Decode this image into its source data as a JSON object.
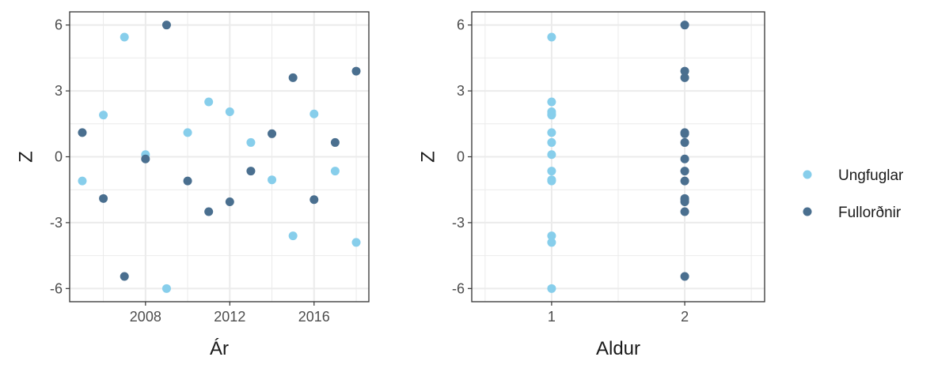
{
  "colors": {
    "ungfuglar": "#87CEEB",
    "fullordnir": "#4A6F8F",
    "grid": "#EBEBEB",
    "panel_border": "#333333"
  },
  "legend": {
    "placement": "right",
    "items": [
      {
        "label": "Ungfuglar",
        "color_key": "ungfuglar"
      },
      {
        "label": "Fullorðnir",
        "color_key": "fullordnir"
      }
    ]
  },
  "chart_data": [
    {
      "type": "scatter",
      "xlabel": "Ár",
      "ylabel": "Z",
      "xlim": [
        2004.4,
        2018.6
      ],
      "ylim": [
        -6.6,
        6.6
      ],
      "xticks": [
        2008,
        2012,
        2016
      ],
      "yticks": [
        -6,
        -3,
        0,
        3,
        6
      ],
      "grid": true,
      "series": [
        {
          "name": "Ungfuglar",
          "color_key": "ungfuglar",
          "x": [
            2005,
            2006,
            2007,
            2008,
            2009,
            2010,
            2011,
            2012,
            2013,
            2014,
            2015,
            2016,
            2017,
            2018
          ],
          "y": [
            -1.1,
            1.9,
            5.45,
            0.1,
            -6.0,
            1.1,
            2.5,
            2.05,
            0.65,
            -1.05,
            -3.6,
            1.95,
            -0.65,
            -3.9
          ]
        },
        {
          "name": "Fullorðnir",
          "color_key": "fullordnir",
          "x": [
            2005,
            2006,
            2007,
            2008,
            2009,
            2010,
            2011,
            2012,
            2013,
            2014,
            2015,
            2016,
            2017,
            2018
          ],
          "y": [
            1.1,
            -1.9,
            -5.45,
            -0.1,
            6.0,
            -1.1,
            -2.5,
            -2.05,
            -0.65,
            1.05,
            3.6,
            -1.95,
            0.65,
            3.9
          ]
        }
      ]
    },
    {
      "type": "scatter",
      "xlabel": "Aldur",
      "ylabel": "Z",
      "xlim": [
        0.4,
        2.6
      ],
      "ylim": [
        -6.6,
        6.6
      ],
      "xticks": [
        1,
        2
      ],
      "yticks": [
        -6,
        -3,
        0,
        3,
        6
      ],
      "grid": true,
      "series": [
        {
          "name": "Ungfuglar",
          "color_key": "ungfuglar",
          "x": [
            1,
            1,
            1,
            1,
            1,
            1,
            1,
            1,
            1,
            1,
            1,
            1,
            1,
            1
          ],
          "y": [
            -1.1,
            1.9,
            5.45,
            0.1,
            -6.0,
            1.1,
            2.5,
            2.05,
            0.65,
            -1.05,
            -3.6,
            1.95,
            -0.65,
            -3.9
          ]
        },
        {
          "name": "Fullorðnir",
          "color_key": "fullordnir",
          "x": [
            2,
            2,
            2,
            2,
            2,
            2,
            2,
            2,
            2,
            2,
            2,
            2,
            2,
            2
          ],
          "y": [
            1.1,
            -1.9,
            -5.45,
            -0.1,
            6.0,
            -1.1,
            -2.5,
            -2.05,
            -0.65,
            1.05,
            3.6,
            -1.95,
            0.65,
            3.9
          ]
        }
      ]
    }
  ]
}
